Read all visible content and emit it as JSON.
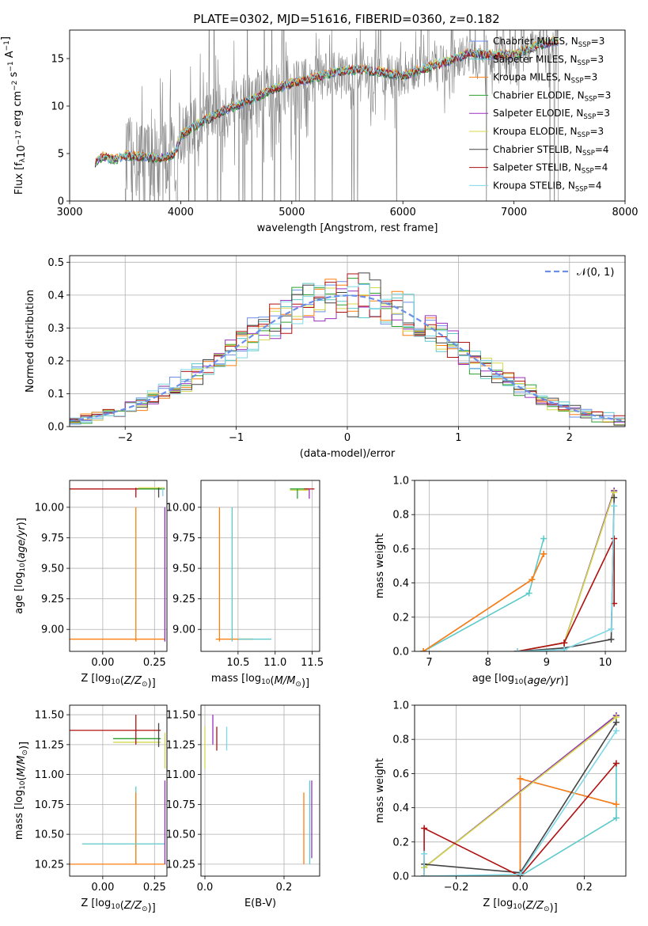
{
  "figure_title": "PLATE=0302, MJD=51616, FIBERID=0360, z=0.182",
  "colors": {
    "Chabrier MILES": "#6b8ee8",
    "Salpeter MILES": "#5cc9c9",
    "Kroupa MILES": "#ff7f0e",
    "Chabrier ELODIE": "#2ca02c",
    "Salpeter ELODIE": "#9b30c0",
    "Kroupa ELODIE": "#d4d84a",
    "Chabrier STELIB": "#444444",
    "Salpeter STELIB": "#b01010",
    "Kroupa STELIB": "#7fd8e6",
    "data": "#808080"
  },
  "chart_data": [
    {
      "id": "spectrum",
      "type": "line",
      "title": "PLATE=0302, MJD=51616, FIBERID=0360, z=0.182",
      "xlabel": "wavelength [Angstrom, rest frame]",
      "ylabel": "Flux [f_λ 10^-17 erg cm^-2 s^-1 A^-1]",
      "xlim": [
        3000,
        8000
      ],
      "ylim": [
        0,
        18
      ],
      "xticks": [
        "3000",
        "4000",
        "5000",
        "6000",
        "7000",
        "8000"
      ],
      "yticks": [
        "0",
        "5",
        "10",
        "15"
      ],
      "legend_position": "top-right",
      "legend": [
        {
          "label": "Chabrier MILES",
          "sub": "SSP",
          "n": "3",
          "color": "#6b8ee8"
        },
        {
          "label": "Salpeter MILES",
          "sub": "SSP",
          "n": "3",
          "color": "#5cc9c9"
        },
        {
          "label": "Kroupa MILES",
          "sub": "SSP",
          "n": "3",
          "color": "#ff7f0e"
        },
        {
          "label": "Chabrier ELODIE",
          "sub": "SSP",
          "n": "3",
          "color": "#2ca02c"
        },
        {
          "label": "Salpeter ELODIE",
          "sub": "SSP",
          "n": "3",
          "color": "#9b30c0"
        },
        {
          "label": "Kroupa ELODIE",
          "sub": "SSP",
          "n": "3",
          "color": "#d4d84a"
        },
        {
          "label": "Chabrier STELIB",
          "sub": "SSP",
          "n": "4",
          "color": "#444444"
        },
        {
          "label": "Salpeter STELIB",
          "sub": "SSP",
          "n": "4",
          "color": "#b01010"
        },
        {
          "label": "Kroupa STELIB",
          "sub": "SSP",
          "n": "4",
          "color": "#7fd8e6"
        }
      ],
      "model_continuum": {
        "x": [
          3230,
          3300,
          3400,
          3500,
          3600,
          3700,
          3800,
          3900,
          3950,
          4000,
          4100,
          4200,
          4300,
          4400,
          4500,
          4600,
          4700,
          4800,
          4900,
          5000,
          5200,
          5400,
          5600,
          5800,
          6000,
          6200,
          6400,
          6600,
          6800,
          7000,
          7200,
          7400
        ],
        "y": [
          4.0,
          4.6,
          4.2,
          4.7,
          4.6,
          4.5,
          4.4,
          4.6,
          5.0,
          6.8,
          7.6,
          8.3,
          8.9,
          9.5,
          9.9,
          10.4,
          10.9,
          11.6,
          11.9,
          12.3,
          12.9,
          13.5,
          13.8,
          13.5,
          13.0,
          13.9,
          14.6,
          15.5,
          15.3,
          15.3,
          16.2,
          16.8
        ]
      }
    },
    {
      "id": "residuals",
      "type": "line",
      "xlabel": "(data-model)/error",
      "ylabel": "Normed distribution",
      "xlim": [
        -2.5,
        2.5
      ],
      "ylim": [
        0,
        0.52
      ],
      "xticks": [
        "−2",
        "−1",
        "0",
        "1",
        "2"
      ],
      "yticks": [
        "0.0",
        "0.1",
        "0.2",
        "0.3",
        "0.4",
        "0.5"
      ],
      "grid": true,
      "legend_position": "top-right",
      "reference_label": "𝒩(0, 1)"
    },
    {
      "id": "age-vs-Z",
      "type": "scatter",
      "xlabel": "Z [log10(Z/Z⊙)]",
      "ylabel": "age [log10(age/yr)]",
      "xlim": [
        -0.16,
        0.31
      ],
      "ylim": [
        8.82,
        10.22
      ],
      "xticks": [
        "0.00",
        "0.25"
      ],
      "yticks": [
        "9.00",
        "9.25",
        "9.50",
        "9.75",
        "10.00"
      ],
      "grid": true
    },
    {
      "id": "age-vs-mass",
      "type": "scatter",
      "xlabel": "mass [log10(M/M⊙)]",
      "ylabel": "",
      "xlim": [
        10.0,
        11.6
      ],
      "ylim": [
        8.82,
        10.22
      ],
      "xticks": [
        "10.5",
        "11.0",
        "11.5"
      ],
      "yticks": [
        "9.00",
        "9.25",
        "9.50",
        "9.75",
        "10.00"
      ],
      "grid": true
    },
    {
      "id": "weight-vs-age",
      "type": "line",
      "xlabel": "age [log10(age/yr)]",
      "ylabel": "mass weight",
      "xlim": [
        6.75,
        10.35
      ],
      "ylim": [
        0,
        1
      ],
      "xticks": [
        "7",
        "8",
        "9",
        "10"
      ],
      "yticks": [
        "0.0",
        "0.2",
        "0.4",
        "0.6",
        "0.8",
        "1.0"
      ],
      "grid": true,
      "series": [
        {
          "key": "Chabrier MILES",
          "x": [
            6.9,
            8.75,
            8.95
          ],
          "y": [
            0.0,
            0.42,
            0.57
          ]
        },
        {
          "key": "Salpeter MILES",
          "x": [
            6.9,
            8.7,
            8.95
          ],
          "y": [
            0.0,
            0.34,
            0.66
          ]
        },
        {
          "key": "Kroupa MILES",
          "x": [
            6.9,
            8.75,
            8.95
          ],
          "y": [
            0.0,
            0.42,
            0.57
          ]
        },
        {
          "key": "Chabrier ELODIE",
          "x": [
            8.5,
            9.3,
            10.15
          ],
          "y": [
            0.0,
            0.05,
            0.94
          ]
        },
        {
          "key": "Salpeter ELODIE",
          "x": [
            8.5,
            9.3,
            10.15
          ],
          "y": [
            0.0,
            0.05,
            0.94
          ]
        },
        {
          "key": "Kroupa ELODIE",
          "x": [
            8.5,
            9.3,
            10.15
          ],
          "y": [
            0.0,
            0.05,
            0.93
          ]
        },
        {
          "key": "Chabrier STELIB",
          "x": [
            8.5,
            9.3,
            10.1,
            10.15
          ],
          "y": [
            0.0,
            0.02,
            0.07,
            0.9
          ]
        },
        {
          "key": "Salpeter STELIB",
          "x": [
            8.5,
            9.3,
            10.15,
            10.15
          ],
          "y": [
            0.0,
            0.05,
            0.66,
            0.28
          ]
        },
        {
          "key": "Kroupa STELIB",
          "x": [
            8.5,
            9.3,
            10.1,
            10.15
          ],
          "y": [
            0.0,
            0.01,
            0.13,
            0.85
          ]
        }
      ]
    },
    {
      "id": "mass-vs-Z",
      "type": "scatter",
      "xlabel": "Z [log10(Z/Z⊙)]",
      "ylabel": "mass [log10(M/M⊙)]",
      "xlim": [
        -0.16,
        0.31
      ],
      "ylim": [
        10.15,
        11.58
      ],
      "xticks": [
        "0.00",
        "0.25"
      ],
      "yticks": [
        "10.25",
        "10.50",
        "10.75",
        "11.00",
        "11.25",
        "11.50"
      ],
      "grid": true
    },
    {
      "id": "mass-vs-EBV",
      "type": "scatter",
      "xlabel": "E(B-V)",
      "ylabel": "",
      "xlim": [
        -0.01,
        0.29
      ],
      "ylim": [
        10.15,
        11.58
      ],
      "xticks": [
        "0.0",
        "0.2"
      ],
      "yticks": [
        "10.25",
        "10.50",
        "10.75",
        "11.00",
        "11.25",
        "11.50"
      ],
      "grid": true
    },
    {
      "id": "weight-vs-Z",
      "type": "line",
      "xlabel": "Z [log10(Z/Z⊙)]",
      "ylabel": "mass weight",
      "xlim": [
        -0.33,
        0.33
      ],
      "ylim": [
        0,
        1
      ],
      "xticks": [
        "−0.2",
        "0.0",
        "0.2"
      ],
      "yticks": [
        "0.0",
        "0.2",
        "0.4",
        "0.6",
        "0.8",
        "1.0"
      ],
      "grid": true,
      "series": [
        {
          "key": "Chabrier MILES",
          "x": [
            -0.3,
            0.0,
            0.0,
            0.3
          ],
          "y": [
            0.0,
            0.0,
            0.57,
            0.42
          ]
        },
        {
          "key": "Salpeter MILES",
          "x": [
            -0.3,
            0.0,
            0.3,
            0.3
          ],
          "y": [
            0.0,
            0.0,
            0.34,
            0.66
          ]
        },
        {
          "key": "Kroupa MILES",
          "x": [
            -0.3,
            0.0,
            0.0,
            0.3
          ],
          "y": [
            0.0,
            0.0,
            0.57,
            0.42
          ]
        },
        {
          "key": "Chabrier ELODIE",
          "x": [
            -0.3,
            0.3
          ],
          "y": [
            0.05,
            0.94
          ]
        },
        {
          "key": "Salpeter ELODIE",
          "x": [
            -0.3,
            0.3
          ],
          "y": [
            0.05,
            0.94
          ]
        },
        {
          "key": "Kroupa ELODIE",
          "x": [
            -0.3,
            0.3
          ],
          "y": [
            0.05,
            0.93
          ]
        },
        {
          "key": "Chabrier STELIB",
          "x": [
            -0.3,
            0.0,
            0.3
          ],
          "y": [
            0.07,
            0.02,
            0.9
          ]
        },
        {
          "key": "Salpeter STELIB",
          "x": [
            -0.3,
            -0.3,
            0.0,
            0.3
          ],
          "y": [
            0.0,
            0.28,
            0.0,
            0.66
          ]
        },
        {
          "key": "Kroupa STELIB",
          "x": [
            -0.3,
            -0.3,
            0.0,
            0.3
          ],
          "y": [
            0.13,
            0.0,
            0.01,
            0.85
          ]
        }
      ]
    }
  ]
}
